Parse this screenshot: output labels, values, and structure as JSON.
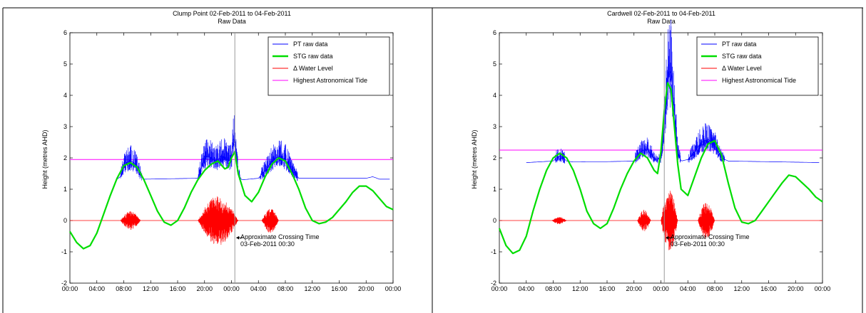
{
  "chart_data": [
    {
      "type": "line",
      "title": "Clump Point 02-Feb-2011 to 04-Feb-2011",
      "subtitle": "Raw Data",
      "xlabel": "",
      "ylabel": "Height (metres AHD)",
      "xlim": [
        0,
        48
      ],
      "ylim": [
        -2,
        6
      ],
      "yticks": [
        "-2",
        "-1",
        "0",
        "1",
        "2",
        "3",
        "4",
        "5",
        "6"
      ],
      "xticks": [
        "00:00",
        "04:00",
        "08:00",
        "12:00",
        "16:00",
        "20:00",
        "00:00",
        "04:00",
        "08:00",
        "12:00",
        "16:00",
        "20:00",
        "00:00"
      ],
      "grid": false,
      "legend_position": "top-right",
      "hat": 1.95,
      "pt_baseline": 1.3,
      "crossing_time": 24.5,
      "annotation": {
        "line1": "Approximate Crossing Time",
        "line2": "03-Feb-2011 00:30",
        "x": 24.5,
        "y": -0.55
      },
      "series": [
        {
          "name": "PT raw data",
          "color": "#0000ff",
          "points": [
            [
              7.0,
              1.32
            ],
            [
              7.5,
              1.4
            ],
            [
              8.0,
              1.7
            ],
            [
              8.5,
              1.85
            ],
            [
              9.0,
              1.9
            ],
            [
              9.5,
              1.85
            ],
            [
              10.0,
              1.7
            ],
            [
              10.5,
              1.45
            ],
            [
              11.0,
              1.32
            ],
            [
              19.0,
              1.35
            ],
            [
              19.5,
              1.7
            ],
            [
              20.0,
              2.0
            ],
            [
              20.5,
              2.05
            ],
            [
              21.0,
              2.0
            ],
            [
              21.5,
              1.9
            ],
            [
              22.0,
              1.95
            ],
            [
              22.5,
              2.05
            ],
            [
              23.0,
              2.05
            ],
            [
              23.5,
              1.9
            ],
            [
              24.0,
              1.95
            ],
            [
              24.3,
              2.7
            ],
            [
              24.6,
              2.4
            ],
            [
              25.0,
              1.5
            ],
            [
              25.5,
              1.3
            ],
            [
              28.0,
              1.35
            ],
            [
              29.0,
              1.6
            ],
            [
              30.0,
              1.9
            ],
            [
              31.0,
              2.05
            ],
            [
              32.0,
              1.95
            ],
            [
              33.0,
              1.6
            ],
            [
              34.0,
              1.35
            ],
            [
              44.0,
              1.35
            ],
            [
              45.0,
              1.4
            ],
            [
              46.0,
              1.32
            ]
          ],
          "noise_amplitude": 0.35
        },
        {
          "name": "STG raw data",
          "color": "#00dd00",
          "points": [
            [
              0,
              -0.35
            ],
            [
              1,
              -0.7
            ],
            [
              2,
              -0.9
            ],
            [
              3,
              -0.8
            ],
            [
              4,
              -0.4
            ],
            [
              5,
              0.2
            ],
            [
              6,
              0.8
            ],
            [
              7,
              1.35
            ],
            [
              8,
              1.75
            ],
            [
              9,
              1.85
            ],
            [
              10,
              1.7
            ],
            [
              11,
              1.3
            ],
            [
              12,
              0.8
            ],
            [
              13,
              0.3
            ],
            [
              14,
              -0.05
            ],
            [
              15,
              -0.15
            ],
            [
              16,
              0.0
            ],
            [
              17,
              0.4
            ],
            [
              18,
              0.9
            ],
            [
              19,
              1.3
            ],
            [
              20,
              1.6
            ],
            [
              21,
              1.8
            ],
            [
              22,
              1.9
            ],
            [
              23,
              1.65
            ],
            [
              23.5,
              1.7
            ],
            [
              24,
              2.0
            ],
            [
              24.5,
              2.2
            ],
            [
              25,
              1.5
            ],
            [
              26,
              0.8
            ],
            [
              27,
              0.6
            ],
            [
              28,
              0.9
            ],
            [
              29,
              1.4
            ],
            [
              30,
              1.8
            ],
            [
              31,
              2.0
            ],
            [
              32,
              1.9
            ],
            [
              33,
              1.5
            ],
            [
              34,
              1.0
            ],
            [
              35,
              0.4
            ],
            [
              36,
              0.0
            ],
            [
              37,
              -0.1
            ],
            [
              38,
              -0.05
            ],
            [
              39,
              0.1
            ],
            [
              40,
              0.35
            ],
            [
              41,
              0.6
            ],
            [
              42,
              0.9
            ],
            [
              43,
              1.1
            ],
            [
              44,
              1.1
            ],
            [
              45,
              0.95
            ],
            [
              46,
              0.7
            ],
            [
              47,
              0.45
            ],
            [
              48,
              0.35
            ]
          ]
        },
        {
          "name": "Δ Water Level",
          "color": "#ff0000",
          "baseline": 0,
          "bursts": [
            [
              7.5,
              10.5,
              0.3
            ],
            [
              19.0,
              25.0,
              0.8
            ],
            [
              28.5,
              31.0,
              0.4
            ]
          ]
        },
        {
          "name": "Highest Astronomical Tide",
          "color": "#ff00ff",
          "value": 1.95
        }
      ]
    },
    {
      "type": "line",
      "title": "Cardwell 02-Feb-2011 to 04-Feb-2011",
      "subtitle": "Raw Data",
      "xlabel": "",
      "ylabel": "Height (metres AHD)",
      "xlim": [
        0,
        48
      ],
      "ylim": [
        -2,
        6
      ],
      "yticks": [
        "-2",
        "-1",
        "0",
        "1",
        "2",
        "3",
        "4",
        "5",
        "6"
      ],
      "xticks": [
        "00:00",
        "04:00",
        "08:00",
        "12:00",
        "16:00",
        "20:00",
        "00:00",
        "04:00",
        "08:00",
        "12:00",
        "16:00",
        "20:00",
        "00:00"
      ],
      "grid": false,
      "legend_position": "top-right",
      "hat": 2.25,
      "pt_baseline": 1.85,
      "crossing_time": 24.5,
      "annotation": {
        "line1": "Approximate Crossing Time",
        "line2": "03-Feb-2011 00:30",
        "x": 24.5,
        "y": -0.55
      },
      "series": [
        {
          "name": "PT raw data",
          "color": "#0000ff",
          "points": [
            [
              4.0,
              1.85
            ],
            [
              8.0,
              1.9
            ],
            [
              8.5,
              2.0
            ],
            [
              9.0,
              2.05
            ],
            [
              9.5,
              2.0
            ],
            [
              10.0,
              1.9
            ],
            [
              11.0,
              1.87
            ],
            [
              12.0,
              1.87
            ],
            [
              13.0,
              1.88
            ],
            [
              16.0,
              1.88
            ],
            [
              20.0,
              1.9
            ],
            [
              21.0,
              2.2
            ],
            [
              22.0,
              2.3
            ],
            [
              23.0,
              1.95
            ],
            [
              24.0,
              2.0
            ],
            [
              24.5,
              3.0
            ],
            [
              25.0,
              4.5
            ],
            [
              25.5,
              4.8
            ],
            [
              26.0,
              3.5
            ],
            [
              26.5,
              2.2
            ],
            [
              27.0,
              1.9
            ],
            [
              28.0,
              1.95
            ],
            [
              29.0,
              2.2
            ],
            [
              30.0,
              2.5
            ],
            [
              31.0,
              2.6
            ],
            [
              32.0,
              2.4
            ],
            [
              33.0,
              2.0
            ],
            [
              34.0,
              1.9
            ],
            [
              48.0,
              1.85
            ]
          ],
          "noise_amplitude": 0.35
        },
        {
          "name": "STG raw data",
          "color": "#00dd00",
          "points": [
            [
              0,
              -0.25
            ],
            [
              1,
              -0.8
            ],
            [
              2,
              -1.05
            ],
            [
              3,
              -0.95
            ],
            [
              4,
              -0.5
            ],
            [
              5,
              0.3
            ],
            [
              6,
              1.0
            ],
            [
              7,
              1.6
            ],
            [
              8,
              2.0
            ],
            [
              9,
              2.15
            ],
            [
              10,
              2.0
            ],
            [
              11,
              1.6
            ],
            [
              12,
              1.0
            ],
            [
              13,
              0.3
            ],
            [
              14,
              -0.1
            ],
            [
              15,
              -0.25
            ],
            [
              16,
              -0.1
            ],
            [
              17,
              0.4
            ],
            [
              18,
              1.0
            ],
            [
              19,
              1.5
            ],
            [
              20,
              1.9
            ],
            [
              21,
              2.15
            ],
            [
              22,
              2.0
            ],
            [
              23,
              1.6
            ],
            [
              23.5,
              1.5
            ],
            [
              24,
              2.2
            ],
            [
              24.5,
              3.5
            ],
            [
              25,
              4.4
            ],
            [
              25.5,
              4.2
            ],
            [
              26,
              3.0
            ],
            [
              26.5,
              1.8
            ],
            [
              27,
              1.0
            ],
            [
              28,
              0.8
            ],
            [
              29,
              1.4
            ],
            [
              30,
              2.0
            ],
            [
              31,
              2.45
            ],
            [
              32,
              2.55
            ],
            [
              33,
              2.1
            ],
            [
              34,
              1.2
            ],
            [
              35,
              0.4
            ],
            [
              36,
              -0.05
            ],
            [
              37,
              -0.1
            ],
            [
              38,
              0.0
            ],
            [
              39,
              0.3
            ],
            [
              40,
              0.6
            ],
            [
              41,
              0.9
            ],
            [
              42,
              1.2
            ],
            [
              43,
              1.45
            ],
            [
              44,
              1.4
            ],
            [
              45,
              1.2
            ],
            [
              46,
              1.0
            ],
            [
              47,
              0.75
            ],
            [
              48,
              0.6
            ]
          ]
        },
        {
          "name": "Δ Water Level",
          "color": "#ff0000",
          "baseline": 0,
          "bursts": [
            [
              7.8,
              10.0,
              0.12
            ],
            [
              20.5,
              22.5,
              0.35
            ],
            [
              24.0,
              26.5,
              1.0
            ],
            [
              29.5,
              32.0,
              0.6
            ]
          ]
        },
        {
          "name": "Highest Astronomical Tide",
          "color": "#ff00ff",
          "value": 2.25
        }
      ]
    }
  ]
}
